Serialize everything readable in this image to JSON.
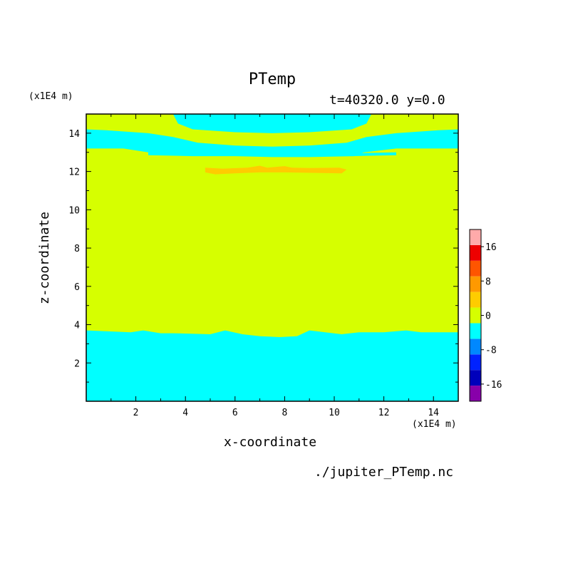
{
  "chart_data": {
    "type": "heatmap",
    "title": "PTemp",
    "subtitle": "t=40320.0 y=0.0",
    "xlabel": "x-coordinate",
    "ylabel": "z-coordinate",
    "x_unit": "(x1E4 m)",
    "y_unit": "(x1E4 m)",
    "source": "./jupiter_PTemp.nc",
    "xlim": [
      0,
      15
    ],
    "ylim": [
      0,
      15
    ],
    "xticks": [
      "2",
      "4",
      "6",
      "8",
      "10",
      "12",
      "14"
    ],
    "yticks": [
      "2",
      "4",
      "6",
      "8",
      "10",
      "12",
      "14"
    ],
    "colorbar": {
      "levels": [
        -20,
        -16,
        -12,
        -8,
        -4,
        0,
        4,
        8,
        12,
        16,
        20
      ],
      "tick_labels": [
        "-16",
        "-8",
        "0",
        "8",
        "16"
      ],
      "tick_values": [
        -16,
        -8,
        0,
        8,
        16
      ],
      "colors": [
        "#8800aa",
        "#0000bb",
        "#0022ff",
        "#0088ff",
        "#00ffff",
        "#d6ff00",
        "#ffcc00",
        "#ff9900",
        "#ff5500",
        "#ee0000",
        "#ffaaaa"
      ]
    },
    "regions": [
      {
        "name": "upper-dome",
        "range": "0 to -4",
        "points": [
          [
            3.5,
            15
          ],
          [
            3.7,
            14.5
          ],
          [
            4.3,
            14.2
          ],
          [
            6,
            14.05
          ],
          [
            7.5,
            14
          ],
          [
            9,
            14.05
          ],
          [
            10.7,
            14.2
          ],
          [
            11.3,
            14.5
          ],
          [
            11.5,
            15
          ]
        ]
      },
      {
        "name": "upper-band",
        "range": "0 to -4",
        "points": [
          [
            0,
            14.2
          ],
          [
            0.8,
            14.15
          ],
          [
            2.5,
            14.0
          ],
          [
            3.5,
            13.8
          ],
          [
            4.5,
            13.5
          ],
          [
            6,
            13.35
          ],
          [
            7.5,
            13.3
          ],
          [
            9,
            13.35
          ],
          [
            10.5,
            13.5
          ],
          [
            11.3,
            13.8
          ],
          [
            12.5,
            14.0
          ],
          [
            14.2,
            14.15
          ],
          [
            15,
            14.2
          ],
          [
            15,
            13.2
          ],
          [
            14,
            13.2
          ],
          [
            12.5,
            13.2
          ],
          [
            11.2,
            13.0
          ],
          [
            10.8,
            12.8
          ],
          [
            9,
            12.75
          ],
          [
            7.5,
            12.75
          ],
          [
            6,
            12.8
          ],
          [
            4.3,
            12.8
          ],
          [
            2.5,
            13.0
          ],
          [
            1.5,
            13.2
          ],
          [
            0,
            13.2
          ]
        ]
      },
      {
        "name": "upper-band-left-tail",
        "range": "0 to -4",
        "points": [
          [
            2.5,
            13.0
          ],
          [
            4.3,
            12.95
          ],
          [
            4.3,
            12.8
          ],
          [
            2.5,
            12.85
          ]
        ]
      },
      {
        "name": "upper-band-right-tail",
        "range": "0 to -4",
        "points": [
          [
            10.7,
            12.95
          ],
          [
            12.5,
            13.0
          ],
          [
            12.5,
            12.85
          ],
          [
            10.7,
            12.8
          ]
        ]
      },
      {
        "name": "warm-streak",
        "range": "4 to 8",
        "points": [
          [
            4.8,
            12.2
          ],
          [
            5.5,
            12.15
          ],
          [
            6.5,
            12.2
          ],
          [
            7,
            12.3
          ],
          [
            7.3,
            12.2
          ],
          [
            8,
            12.28
          ],
          [
            8.3,
            12.2
          ],
          [
            9,
            12.18
          ],
          [
            10.2,
            12.2
          ],
          [
            10.5,
            12.1
          ],
          [
            10.3,
            11.9
          ],
          [
            8,
            11.95
          ],
          [
            7,
            11.95
          ],
          [
            6,
            11.9
          ],
          [
            5.2,
            11.85
          ],
          [
            4.8,
            11.95
          ]
        ]
      },
      {
        "name": "lower-layer",
        "range": "0 to -4",
        "points": [
          [
            0,
            0
          ],
          [
            15,
            0
          ],
          [
            15,
            3.6
          ],
          [
            13.5,
            3.6
          ],
          [
            12.9,
            3.7
          ],
          [
            12,
            3.6
          ],
          [
            11,
            3.6
          ],
          [
            10.3,
            3.5
          ],
          [
            9,
            3.7
          ],
          [
            8.5,
            3.4
          ],
          [
            7.8,
            3.35
          ],
          [
            7,
            3.4
          ],
          [
            6.3,
            3.5
          ],
          [
            5.6,
            3.7
          ],
          [
            5,
            3.5
          ],
          [
            3.5,
            3.55
          ],
          [
            3,
            3.55
          ],
          [
            2.3,
            3.7
          ],
          [
            1.8,
            3.6
          ],
          [
            0,
            3.7
          ]
        ]
      }
    ]
  }
}
